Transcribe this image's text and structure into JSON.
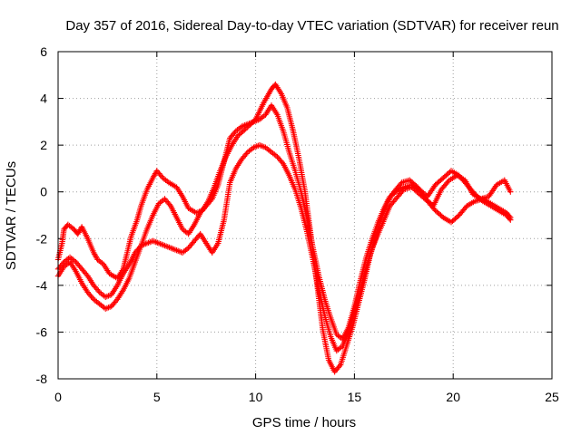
{
  "chart_data": {
    "type": "scatter",
    "title": "Day 357 of 2016, Sidereal Day-to-day VTEC variation (SDTVAR) for receiver reun",
    "xlabel": "GPS time / hours",
    "ylabel": "SDTVAR / TECUs",
    "xlim": [
      0,
      25
    ],
    "ylim": [
      -8,
      6
    ],
    "xticks": [
      0,
      5,
      10,
      15,
      20,
      25
    ],
    "yticks": [
      -8,
      -6,
      -4,
      -2,
      0,
      2,
      4,
      6
    ],
    "xtick_labels": [
      "0",
      "5",
      "10",
      "15",
      "20",
      "25"
    ],
    "ytick_labels": [
      "-8",
      "-6",
      "-4",
      "-2",
      "0",
      "2",
      "4",
      "6"
    ],
    "grid": true,
    "grid_style": "dotted",
    "marker": "plus",
    "series_color": "#ff0000",
    "series": [
      {
        "x": [
          0.0,
          0.2,
          0.3,
          0.5,
          0.8,
          1.0,
          1.2,
          1.5,
          1.8,
          2.0,
          2.3,
          2.6,
          3.0,
          3.3,
          3.5,
          3.7,
          4.0,
          4.2,
          4.5,
          4.8,
          5.0,
          5.3,
          5.6,
          6.0,
          6.3,
          6.6,
          7.0,
          7.3,
          7.6,
          7.9,
          8.2,
          8.5,
          8.8,
          9.1,
          9.5,
          10.0,
          10.4,
          10.8,
          11.0,
          11.3,
          11.6,
          11.9,
          12.2,
          12.5,
          12.8,
          13.1,
          13.4,
          13.7,
          14.0,
          14.3,
          14.6,
          14.9,
          15.2,
          15.5,
          15.8,
          16.1,
          16.4,
          16.7,
          17.0,
          17.4,
          17.8,
          18.2,
          18.6,
          19.0,
          19.4,
          19.8,
          20.2,
          20.6,
          21.0,
          21.4,
          21.8,
          22.2,
          22.6,
          22.9
        ],
        "y": [
          -2.9,
          -2.2,
          -1.6,
          -1.4,
          -1.6,
          -1.8,
          -1.5,
          -2.0,
          -2.6,
          -2.9,
          -3.1,
          -3.5,
          -3.7,
          -3.3,
          -2.6,
          -1.9,
          -1.2,
          -0.6,
          0.1,
          0.6,
          0.9,
          0.6,
          0.4,
          0.2,
          -0.2,
          -0.7,
          -0.9,
          -0.8,
          -0.4,
          0.2,
          0.9,
          1.5,
          2.0,
          2.4,
          2.7,
          3.1,
          3.8,
          4.4,
          4.6,
          4.2,
          3.6,
          2.6,
          1.4,
          0.0,
          -1.9,
          -3.9,
          -5.9,
          -7.2,
          -7.7,
          -7.4,
          -6.6,
          -5.8,
          -4.8,
          -3.8,
          -2.7,
          -1.9,
          -1.0,
          -0.4,
          0.0,
          0.4,
          0.5,
          0.2,
          -0.3,
          -0.6,
          0.1,
          0.5,
          0.7,
          0.5,
          -0.1,
          -0.3,
          -0.2,
          0.3,
          0.5,
          0.0
        ]
      },
      {
        "x": [
          0.0,
          0.3,
          0.6,
          0.9,
          1.2,
          1.5,
          1.8,
          2.1,
          2.4,
          2.7,
          3.0,
          3.3,
          3.6,
          3.9,
          4.2,
          4.5,
          4.8,
          5.1,
          5.4,
          5.7,
          6.0,
          6.3,
          6.6,
          6.9,
          7.2,
          7.5,
          7.8,
          8.1,
          8.4,
          8.7,
          9.0,
          9.3,
          9.6,
          9.9,
          10.2,
          10.5,
          10.8,
          11.1,
          11.4,
          11.7,
          12.0,
          12.3,
          12.6,
          12.9,
          13.2,
          13.5,
          13.8,
          14.1,
          14.4,
          14.7,
          15.0,
          15.3,
          15.6,
          15.9,
          16.2,
          16.5,
          16.8,
          17.1,
          17.5,
          17.9,
          18.3,
          18.7,
          19.1,
          19.5,
          19.9,
          20.3,
          20.7,
          21.1,
          21.5,
          21.9,
          22.3,
          22.7,
          22.9
        ],
        "y": [
          -3.3,
          -3.0,
          -2.8,
          -3.0,
          -3.3,
          -3.6,
          -4.0,
          -4.3,
          -4.5,
          -4.4,
          -4.0,
          -3.5,
          -3.1,
          -2.6,
          -2.3,
          -2.2,
          -2.1,
          -2.2,
          -2.3,
          -2.4,
          -2.5,
          -2.6,
          -2.4,
          -2.1,
          -1.8,
          -2.2,
          -2.6,
          -2.2,
          -1.2,
          0.4,
          1.0,
          1.4,
          1.7,
          1.9,
          2.0,
          1.9,
          1.7,
          1.5,
          1.2,
          0.7,
          0.1,
          -0.7,
          -1.7,
          -2.9,
          -4.2,
          -5.3,
          -6.2,
          -6.8,
          -6.6,
          -6.0,
          -5.1,
          -4.2,
          -3.2,
          -2.4,
          -1.8,
          -1.2,
          -0.6,
          -0.3,
          0.1,
          0.2,
          -0.1,
          -0.4,
          -0.8,
          -1.1,
          -1.3,
          -1.0,
          -0.6,
          -0.4,
          -0.3,
          -0.5,
          -0.7,
          -0.9,
          -1.1
        ]
      },
      {
        "x": [
          0.0,
          0.3,
          0.6,
          0.9,
          1.2,
          1.5,
          1.8,
          2.1,
          2.4,
          2.7,
          3.0,
          3.3,
          3.6,
          3.9,
          4.2,
          4.5,
          4.8,
          5.1,
          5.4,
          5.7,
          6.0,
          6.3,
          6.6,
          6.9,
          7.2,
          7.5,
          7.8,
          8.1,
          8.4,
          8.7,
          9.0,
          9.3,
          9.6,
          9.9,
          10.2,
          10.5,
          10.8,
          11.1,
          11.4,
          11.7,
          12.0,
          12.3,
          12.6,
          12.9,
          13.2,
          13.5,
          13.8,
          14.1,
          14.4,
          14.7,
          15.0,
          15.3,
          15.6,
          15.9,
          16.2,
          16.5,
          16.8,
          17.1,
          17.5,
          17.9,
          18.3,
          18.7,
          19.1,
          19.5,
          19.9,
          20.3,
          20.7,
          21.1,
          21.5,
          21.9,
          22.3,
          22.7,
          22.9
        ],
        "y": [
          -3.6,
          -3.2,
          -3.0,
          -3.4,
          -3.9,
          -4.3,
          -4.6,
          -4.8,
          -5.0,
          -4.9,
          -4.6,
          -4.2,
          -3.7,
          -3.0,
          -2.3,
          -1.6,
          -1.0,
          -0.5,
          -0.3,
          -0.6,
          -1.1,
          -1.6,
          -1.8,
          -1.4,
          -0.9,
          -0.6,
          -0.3,
          0.3,
          1.3,
          2.3,
          2.6,
          2.8,
          2.9,
          3.0,
          3.1,
          3.3,
          3.7,
          3.3,
          2.6,
          1.7,
          0.9,
          0.0,
          -1.1,
          -2.4,
          -3.6,
          -4.6,
          -5.4,
          -6.1,
          -6.3,
          -5.8,
          -4.9,
          -3.8,
          -2.8,
          -2.0,
          -1.3,
          -0.7,
          -0.2,
          0.0,
          0.2,
          0.3,
          0.1,
          -0.2,
          0.3,
          0.6,
          0.9,
          0.7,
          0.3,
          -0.1,
          -0.4,
          -0.6,
          -0.8,
          -1.0,
          -1.2
        ]
      }
    ]
  }
}
